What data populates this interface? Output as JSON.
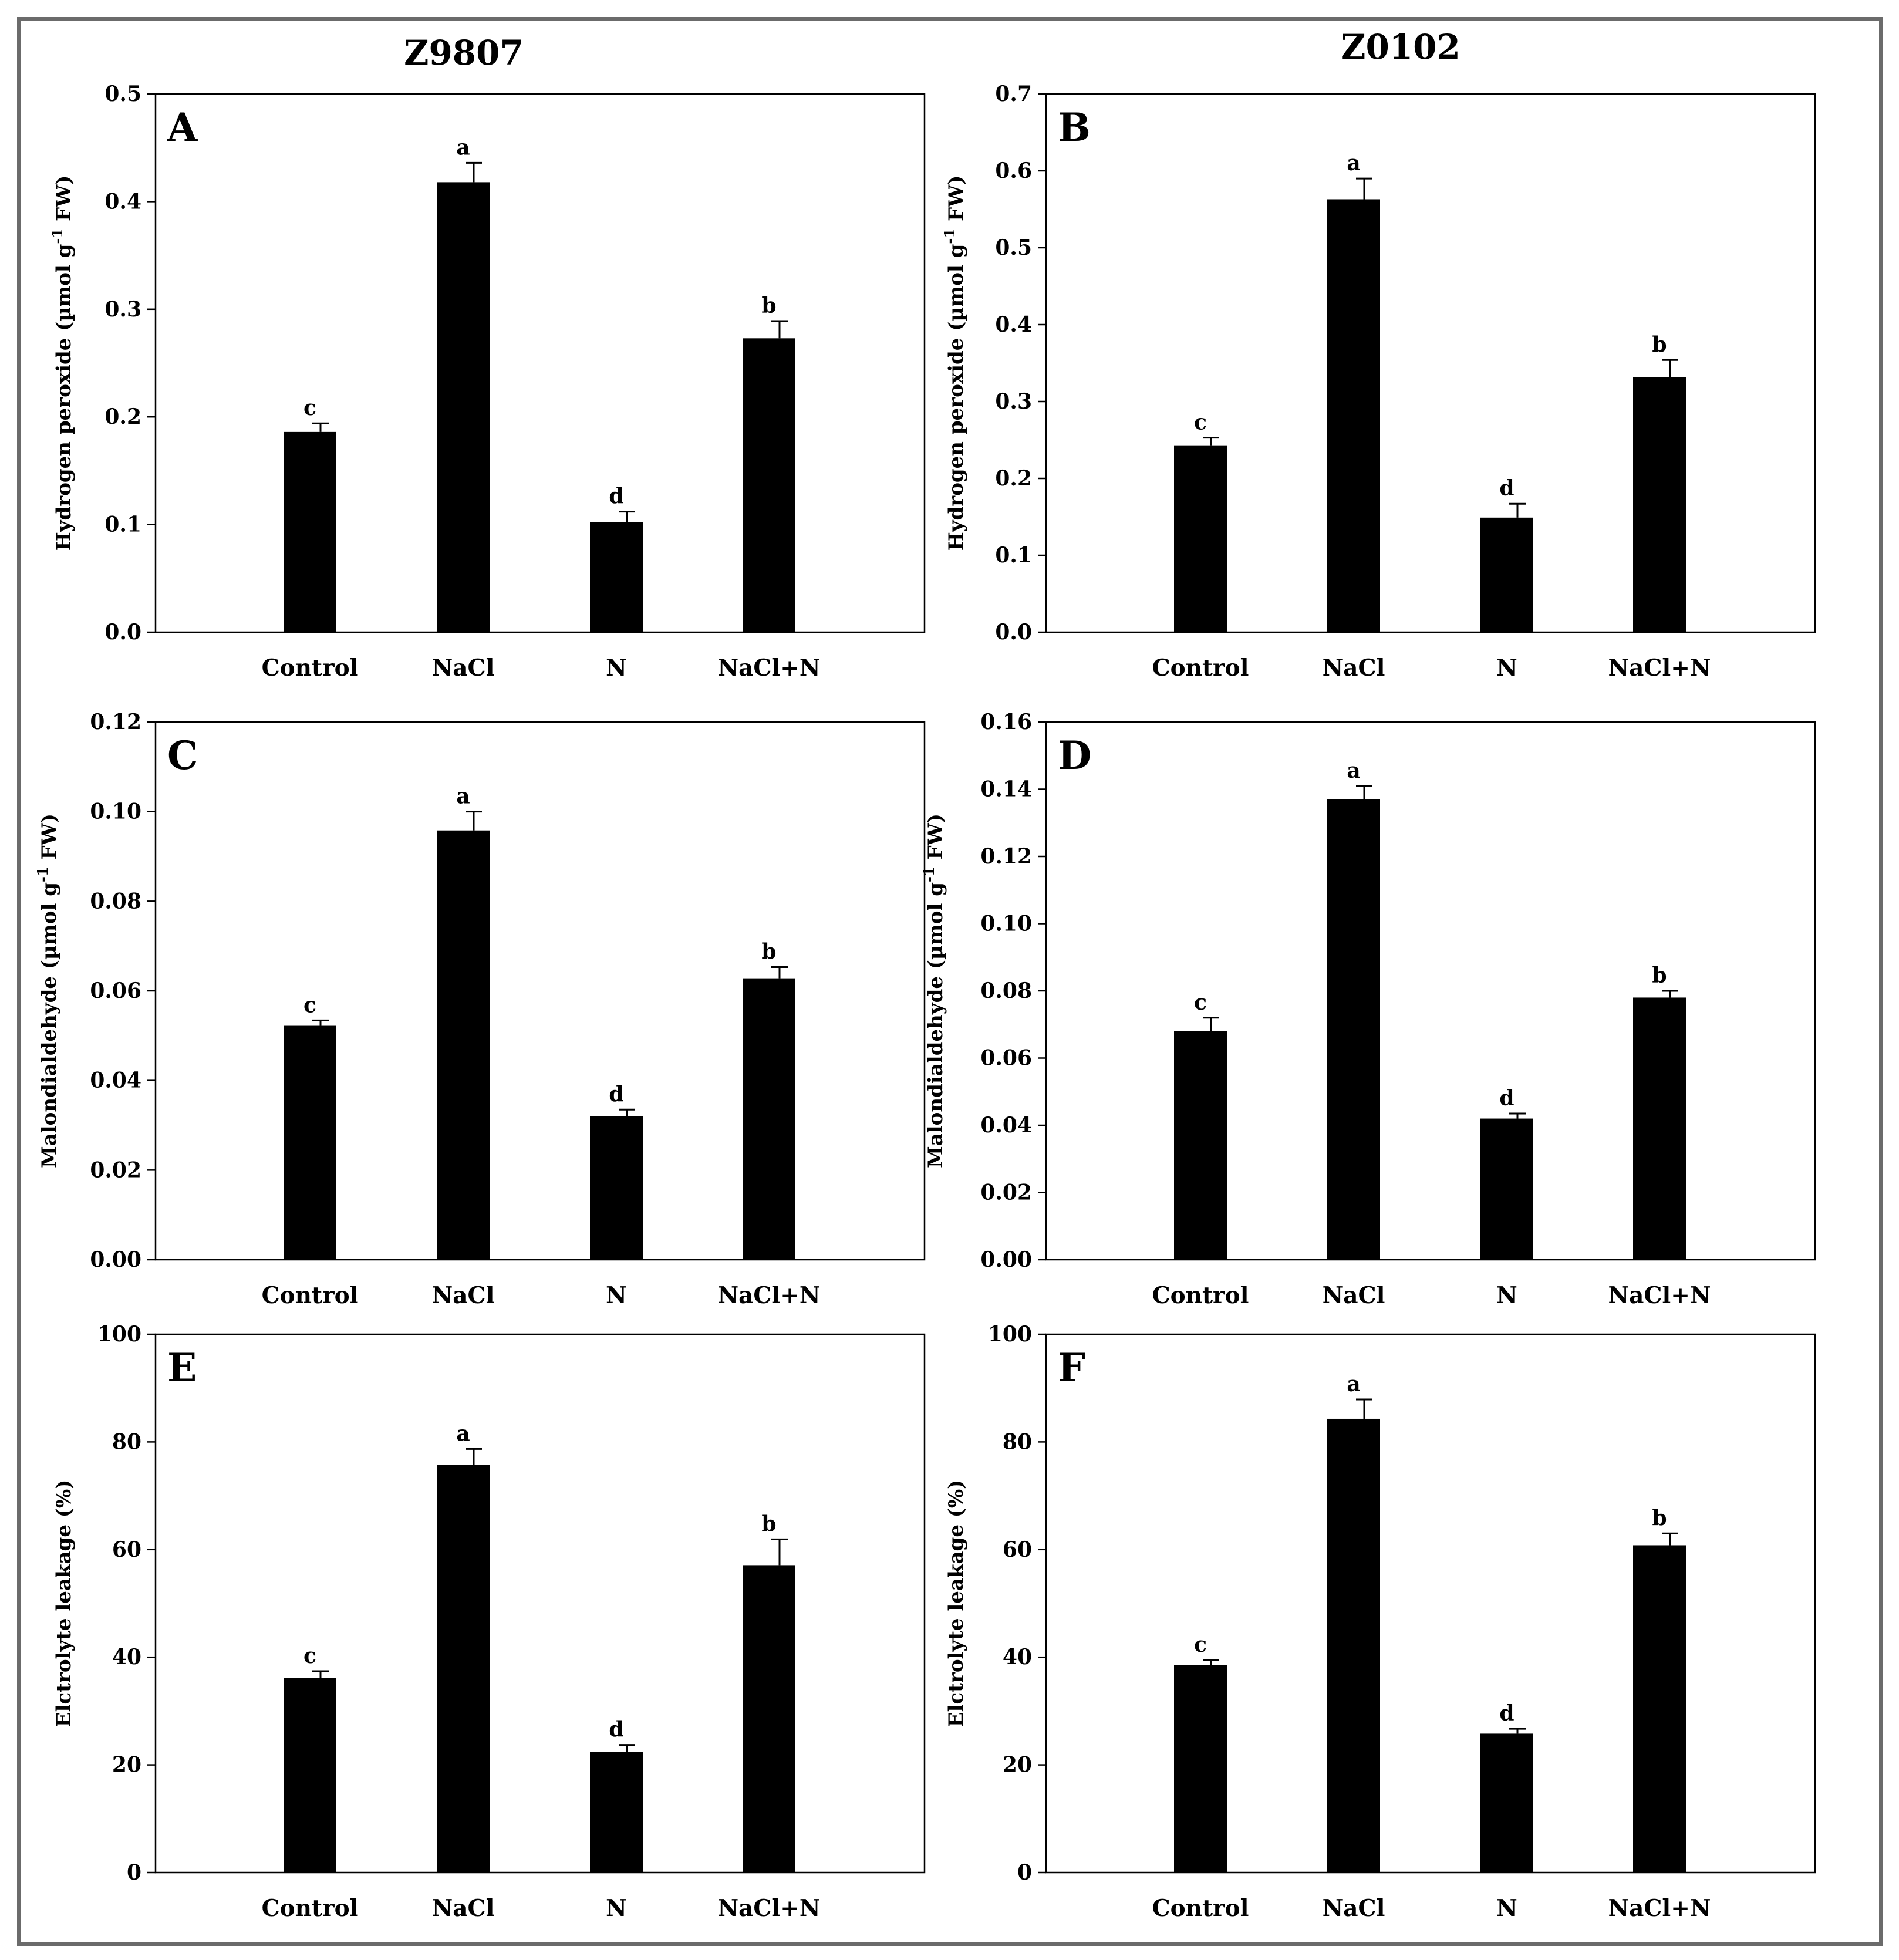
{
  "figure": {
    "column_titles": [
      "Z9807",
      "Z0102"
    ]
  },
  "chart_data": [
    {
      "panel": "A",
      "type": "bar",
      "ylabel": "Hydrogen peroxide (µmol g-1 FW)",
      "ylabel_main": "Hydrogen peroxide (µmol g",
      "ylabel_sup": "-1",
      "ylabel_tail": " FW)",
      "categories": [
        "Control",
        "NaCl",
        "N",
        "NaCl+N"
      ],
      "values": [
        0.186,
        0.418,
        0.102,
        0.273
      ],
      "errors": [
        0.008,
        0.018,
        0.01,
        0.016
      ],
      "significance": [
        "c",
        "a",
        "d",
        "b"
      ],
      "ylim": [
        0,
        0.5
      ],
      "yticks": [
        0.0,
        0.1,
        0.2,
        0.3,
        0.4,
        0.5
      ],
      "ytick_labels": [
        "0.0",
        "0.1",
        "0.2",
        "0.3",
        "0.4",
        "0.5"
      ]
    },
    {
      "panel": "B",
      "type": "bar",
      "ylabel": "Hydrogen peroxide (µmol g-1 FW)",
      "ylabel_main": "Hydrogen peroxide (µmol g",
      "ylabel_sup": "-1",
      "ylabel_tail": " FW)",
      "categories": [
        "Control",
        "NaCl",
        "N",
        "NaCl+N"
      ],
      "values": [
        0.243,
        0.563,
        0.149,
        0.332
      ],
      "errors": [
        0.01,
        0.027,
        0.018,
        0.022
      ],
      "significance": [
        "c",
        "a",
        "d",
        "b"
      ],
      "ylim": [
        0,
        0.7
      ],
      "yticks": [
        0.0,
        0.1,
        0.2,
        0.3,
        0.4,
        0.5,
        0.6,
        0.7
      ],
      "ytick_labels": [
        "0.0",
        "0.1",
        "0.2",
        "0.3",
        "0.4",
        "0.5",
        "0.6",
        "0.7"
      ]
    },
    {
      "panel": "C",
      "type": "bar",
      "ylabel": "Malondialdehyde (µmol g-1 FW)",
      "ylabel_main": "Malondialdehyde (µmol g",
      "ylabel_sup": "-1",
      "ylabel_tail": " FW)",
      "categories": [
        "Control",
        "NaCl",
        "N",
        "NaCl+N"
      ],
      "values": [
        0.0522,
        0.0958,
        0.032,
        0.0628
      ],
      "errors": [
        0.0012,
        0.0042,
        0.0015,
        0.0025
      ],
      "significance": [
        "c",
        "a",
        "d",
        "b"
      ],
      "ylim": [
        0,
        0.12
      ],
      "yticks": [
        0.0,
        0.02,
        0.04,
        0.06,
        0.08,
        0.1,
        0.12
      ],
      "ytick_labels": [
        "0.00",
        "0.02",
        "0.04",
        "0.06",
        "0.08",
        "0.10",
        "0.12"
      ]
    },
    {
      "panel": "D",
      "type": "bar",
      "ylabel": "Malondialdehyde (µmol g-1 FW)",
      "ylabel_main": "Malondialdehyde (µmol g",
      "ylabel_sup": "-1",
      "ylabel_tail": " FW)",
      "categories": [
        "Control",
        "NaCl",
        "N",
        "NaCl+N"
      ],
      "values": [
        0.068,
        0.137,
        0.042,
        0.078
      ],
      "errors": [
        0.004,
        0.004,
        0.0015,
        0.002
      ],
      "significance": [
        "c",
        "a",
        "d",
        "b"
      ],
      "ylim": [
        0,
        0.16
      ],
      "yticks": [
        0.0,
        0.02,
        0.04,
        0.06,
        0.08,
        0.1,
        0.12,
        0.14,
        0.16
      ],
      "ytick_labels": [
        "0.00",
        "0.02",
        "0.04",
        "0.06",
        "0.08",
        "0.10",
        "0.12",
        "0.14",
        "0.16"
      ]
    },
    {
      "panel": "E",
      "type": "bar",
      "ylabel": "Elctrolyte leakage (%)",
      "ylabel_main": "Elctrolyte leakage (%)",
      "ylabel_sup": "",
      "ylabel_tail": "",
      "categories": [
        "Control",
        "NaCl",
        "N",
        "NaCl+N"
      ],
      "values": [
        36.2,
        75.7,
        22.4,
        57.1
      ],
      "errors": [
        1.2,
        3.0,
        1.3,
        4.8
      ],
      "significance": [
        "c",
        "a",
        "d",
        "b"
      ],
      "ylim": [
        0,
        100
      ],
      "yticks": [
        0,
        20,
        40,
        60,
        80,
        100
      ],
      "ytick_labels": [
        "0",
        "20",
        "40",
        "60",
        "80",
        "100"
      ]
    },
    {
      "panel": "F",
      "type": "bar",
      "ylabel": "Elctrolyte leakage (%)",
      "ylabel_main": "Elctrolyte leakage (%)",
      "ylabel_sup": "",
      "ylabel_tail": "",
      "categories": [
        "Control",
        "NaCl",
        "N",
        "NaCl+N"
      ],
      "values": [
        38.5,
        84.3,
        25.8,
        60.8
      ],
      "errors": [
        1.0,
        3.6,
        0.9,
        2.2
      ],
      "significance": [
        "c",
        "a",
        "d",
        "b"
      ],
      "ylim": [
        0,
        100
      ],
      "yticks": [
        0,
        20,
        40,
        60,
        80,
        100
      ],
      "ytick_labels": [
        "0",
        "20",
        "40",
        "60",
        "80",
        "100"
      ]
    }
  ],
  "colors": {
    "bar": "#000000",
    "frame": "#000000",
    "outer_border": "#6b6b6b",
    "background": "#ffffff"
  }
}
